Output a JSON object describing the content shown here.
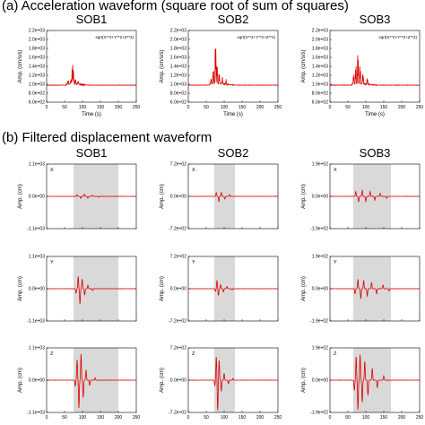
{
  "sections": [
    {
      "label": "(a)  Acceleration waveform (square root of sum of squares)"
    },
    {
      "label": "(b)  Filtered displacement waveform"
    }
  ],
  "stations": [
    "SOB1",
    "SOB2",
    "SOB3"
  ],
  "colors": {
    "waveform": "#e00000",
    "shade": "#d9d9d9",
    "axis": "#000000"
  },
  "chart_data": [
    {
      "type": "line",
      "section": "a",
      "station": "SOB1",
      "annotation": "sqrt(X**2+Y**2+Z**2)",
      "xlabel": "Time (s)",
      "ylabel": "Amp. (cm/s/s)",
      "xlim": [
        0,
        250
      ],
      "ylim": [
        600,
        2200
      ],
      "xticks": [
        "0",
        "50",
        "100",
        "150",
        "200",
        "250"
      ],
      "yticks": [
        "6.0e+02",
        "8.0e+02",
        "1.0e+03",
        "1.2e+03",
        "1.4e+03",
        "1.6e+03",
        "1.8e+03",
        "2.0e+03",
        "2.2e+03"
      ],
      "baseline": 980,
      "peaks": [
        [
          60,
          1080
        ],
        [
          68,
          1130
        ],
        [
          72,
          1580
        ],
        [
          75,
          1250
        ],
        [
          80,
          1120
        ],
        [
          88,
          1060
        ]
      ]
    },
    {
      "type": "line",
      "section": "a",
      "station": "SOB2",
      "annotation": "sqrt(X**2+Y**2+Z**2)",
      "xlabel": "Time (s)",
      "ylabel": "Amp. (cm/s/s)",
      "xlim": [
        0,
        250
      ],
      "ylim": [
        600,
        2200
      ],
      "xticks": [
        "0",
        "50",
        "100",
        "150",
        "200",
        "250"
      ],
      "yticks": [
        "6.0e+02",
        "8.0e+02",
        "1.0e+03",
        "1.2e+03",
        "1.4e+03",
        "1.6e+03",
        "1.8e+03",
        "2.0e+03",
        "2.2e+03"
      ],
      "baseline": 980,
      "peaks": [
        [
          64,
          1150
        ],
        [
          70,
          1400
        ],
        [
          76,
          2180
        ],
        [
          80,
          1550
        ],
        [
          86,
          1300
        ],
        [
          95,
          1150
        ],
        [
          105,
          1080
        ]
      ]
    },
    {
      "type": "line",
      "section": "a",
      "station": "SOB3",
      "annotation": "sqrt(X**2+Y**2+Z**2)",
      "xlabel": "Time (s)",
      "ylabel": "Amp. (cm/s/s)",
      "xlim": [
        0,
        250
      ],
      "ylim": [
        600,
        2200
      ],
      "xticks": [
        "0",
        "50",
        "100",
        "150",
        "200",
        "250"
      ],
      "yticks": [
        "6.0e+02",
        "8.0e+02",
        "1.0e+03",
        "1.2e+03",
        "1.4e+03",
        "1.6e+03",
        "1.8e+03",
        "2.0e+03",
        "2.2e+03"
      ],
      "baseline": 980,
      "peaks": [
        [
          66,
          1250
        ],
        [
          72,
          1550
        ],
        [
          78,
          1950
        ],
        [
          84,
          1500
        ],
        [
          92,
          1300
        ],
        [
          104,
          1150
        ]
      ]
    },
    {
      "type": "line",
      "section": "b",
      "station": "SOB1",
      "component": "X",
      "ylabel": "Amp. (cm)",
      "xlim": [
        0,
        250
      ],
      "ylim": [
        -1100,
        1100
      ],
      "ytick_labels": [
        "1.1e+03",
        "0.0e+00",
        "-1.1e+03"
      ],
      "shade": [
        75,
        200
      ],
      "peaks": [
        [
          85,
          60
        ],
        [
          95,
          -70
        ],
        [
          105,
          80
        ],
        [
          115,
          -60
        ],
        [
          128,
          40
        ],
        [
          145,
          -25
        ]
      ]
    },
    {
      "type": "line",
      "section": "b",
      "station": "SOB2",
      "component": "X",
      "ylabel": "Amp. (cm)",
      "xlim": [
        0,
        250
      ],
      "ylim": [
        -720,
        720
      ],
      "ytick_labels": [
        "7.2e+02",
        "0.0e+00",
        "-7.2e+02"
      ],
      "shade": [
        72,
        130
      ],
      "peaks": [
        [
          78,
          80
        ],
        [
          85,
          -110
        ],
        [
          92,
          90
        ],
        [
          102,
          -60
        ],
        [
          115,
          40
        ]
      ]
    },
    {
      "type": "line",
      "section": "b",
      "station": "SOB3",
      "component": "X",
      "ylabel": "Amp. (cm)",
      "xlim": [
        0,
        250
      ],
      "ylim": [
        -190,
        190
      ],
      "ytick_labels": [
        "1.9e+02",
        "0.0e+00",
        "-1.9e+02"
      ],
      "shade": [
        65,
        170
      ],
      "peaks": [
        [
          72,
          28
        ],
        [
          80,
          -32
        ],
        [
          90,
          35
        ],
        [
          100,
          -30
        ],
        [
          112,
          28
        ],
        [
          125,
          -24
        ],
        [
          140,
          18
        ],
        [
          158,
          -12
        ]
      ]
    },
    {
      "type": "line",
      "section": "b",
      "station": "SOB1",
      "component": "Y",
      "ylabel": "Amp. (cm)",
      "xlim": [
        0,
        250
      ],
      "ylim": [
        -1100,
        1100
      ],
      "ytick_labels": [
        "1.1e+03",
        "0.0e+00",
        "-1.1e+03"
      ],
      "shade": [
        75,
        200
      ],
      "peaks": [
        [
          82,
          -150
        ],
        [
          88,
          420
        ],
        [
          93,
          -520
        ],
        [
          99,
          330
        ],
        [
          106,
          -220
        ],
        [
          115,
          120
        ],
        [
          128,
          -60
        ]
      ]
    },
    {
      "type": "line",
      "section": "b",
      "station": "SOB2",
      "component": "Y",
      "ylabel": "Amp. (cm)",
      "xlim": [
        0,
        250
      ],
      "ylim": [
        -720,
        720
      ],
      "ytick_labels": [
        "7.2e+02",
        "0.0e+00",
        "-7.2e+02"
      ],
      "shade": [
        72,
        130
      ],
      "peaks": [
        [
          76,
          -60
        ],
        [
          80,
          180
        ],
        [
          84,
          -150
        ],
        [
          90,
          90
        ],
        [
          98,
          -70
        ],
        [
          108,
          50
        ],
        [
          122,
          -30
        ]
      ]
    },
    {
      "type": "line",
      "section": "b",
      "station": "SOB3",
      "component": "Y",
      "ylabel": "Amp. (cm)",
      "xlim": [
        0,
        250
      ],
      "ylim": [
        -190,
        190
      ],
      "ytick_labels": [
        "1.9e+02",
        "0.0e+00",
        "-1.9e+02"
      ],
      "shade": [
        65,
        170
      ],
      "peaks": [
        [
          70,
          -30
        ],
        [
          78,
          55
        ],
        [
          86,
          -60
        ],
        [
          94,
          50
        ],
        [
          104,
          -45
        ],
        [
          116,
          38
        ],
        [
          130,
          -30
        ],
        [
          148,
          22
        ],
        [
          165,
          -14
        ]
      ]
    },
    {
      "type": "line",
      "section": "b",
      "station": "SOB1",
      "component": "Z",
      "ylabel": "Amp. (cm)",
      "xlim": [
        0,
        250
      ],
      "ylim": [
        -1100,
        1100
      ],
      "ytick_labels": [
        "1.1e+03",
        "0.0e+00",
        "-1.1e+03"
      ],
      "shade": [
        75,
        200
      ],
      "peaks": [
        [
          80,
          -200
        ],
        [
          85,
          700
        ],
        [
          90,
          -950
        ],
        [
          96,
          900
        ],
        [
          102,
          -600
        ],
        [
          110,
          350
        ],
        [
          120,
          -180
        ],
        [
          135,
          80
        ]
      ]
    },
    {
      "type": "line",
      "section": "b",
      "station": "SOB2",
      "component": "Z",
      "ylabel": "Amp. (cm)",
      "xlim": [
        0,
        250
      ],
      "ylim": [
        -720,
        720
      ],
      "ytick_labels": [
        "7.2e+02",
        "0.0e+00",
        "-7.2e+02"
      ],
      "shade": [
        72,
        130
      ],
      "peaks": [
        [
          74,
          -120
        ],
        [
          78,
          520
        ],
        [
          82,
          -680
        ],
        [
          86,
          450
        ],
        [
          92,
          -250
        ],
        [
          100,
          150
        ],
        [
          112,
          -80
        ],
        [
          125,
          40
        ]
      ]
    },
    {
      "type": "line",
      "section": "b",
      "station": "SOB3",
      "component": "Z",
      "ylabel": "Amp. (cm)",
      "xlim": [
        0,
        250
      ],
      "ylim": [
        -190,
        190
      ],
      "ytick_labels": [
        "1.9e+02",
        "0.0e+00",
        "-1.9e+02"
      ],
      "shade": [
        65,
        170
      ],
      "peaks": [
        [
          68,
          -60
        ],
        [
          73,
          140
        ],
        [
          78,
          -175
        ],
        [
          84,
          150
        ],
        [
          90,
          -130
        ],
        [
          97,
          110
        ],
        [
          106,
          -90
        ],
        [
          118,
          70
        ],
        [
          132,
          -45
        ],
        [
          150,
          25
        ]
      ]
    }
  ]
}
